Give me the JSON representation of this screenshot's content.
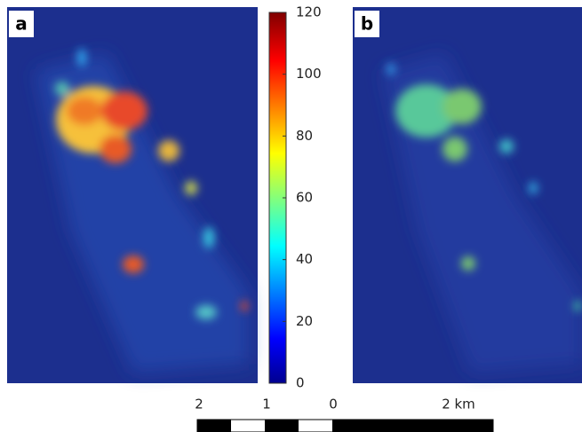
{
  "panels": [
    {
      "label": "a"
    },
    {
      "label": "b"
    }
  ],
  "colorbar": {
    "range": [
      0,
      120
    ],
    "ticks": [
      0,
      20,
      40,
      60,
      80,
      100,
      120
    ]
  },
  "scale_bar": {
    "labels": [
      "2",
      "1",
      "0",
      "2 km"
    ]
  }
}
